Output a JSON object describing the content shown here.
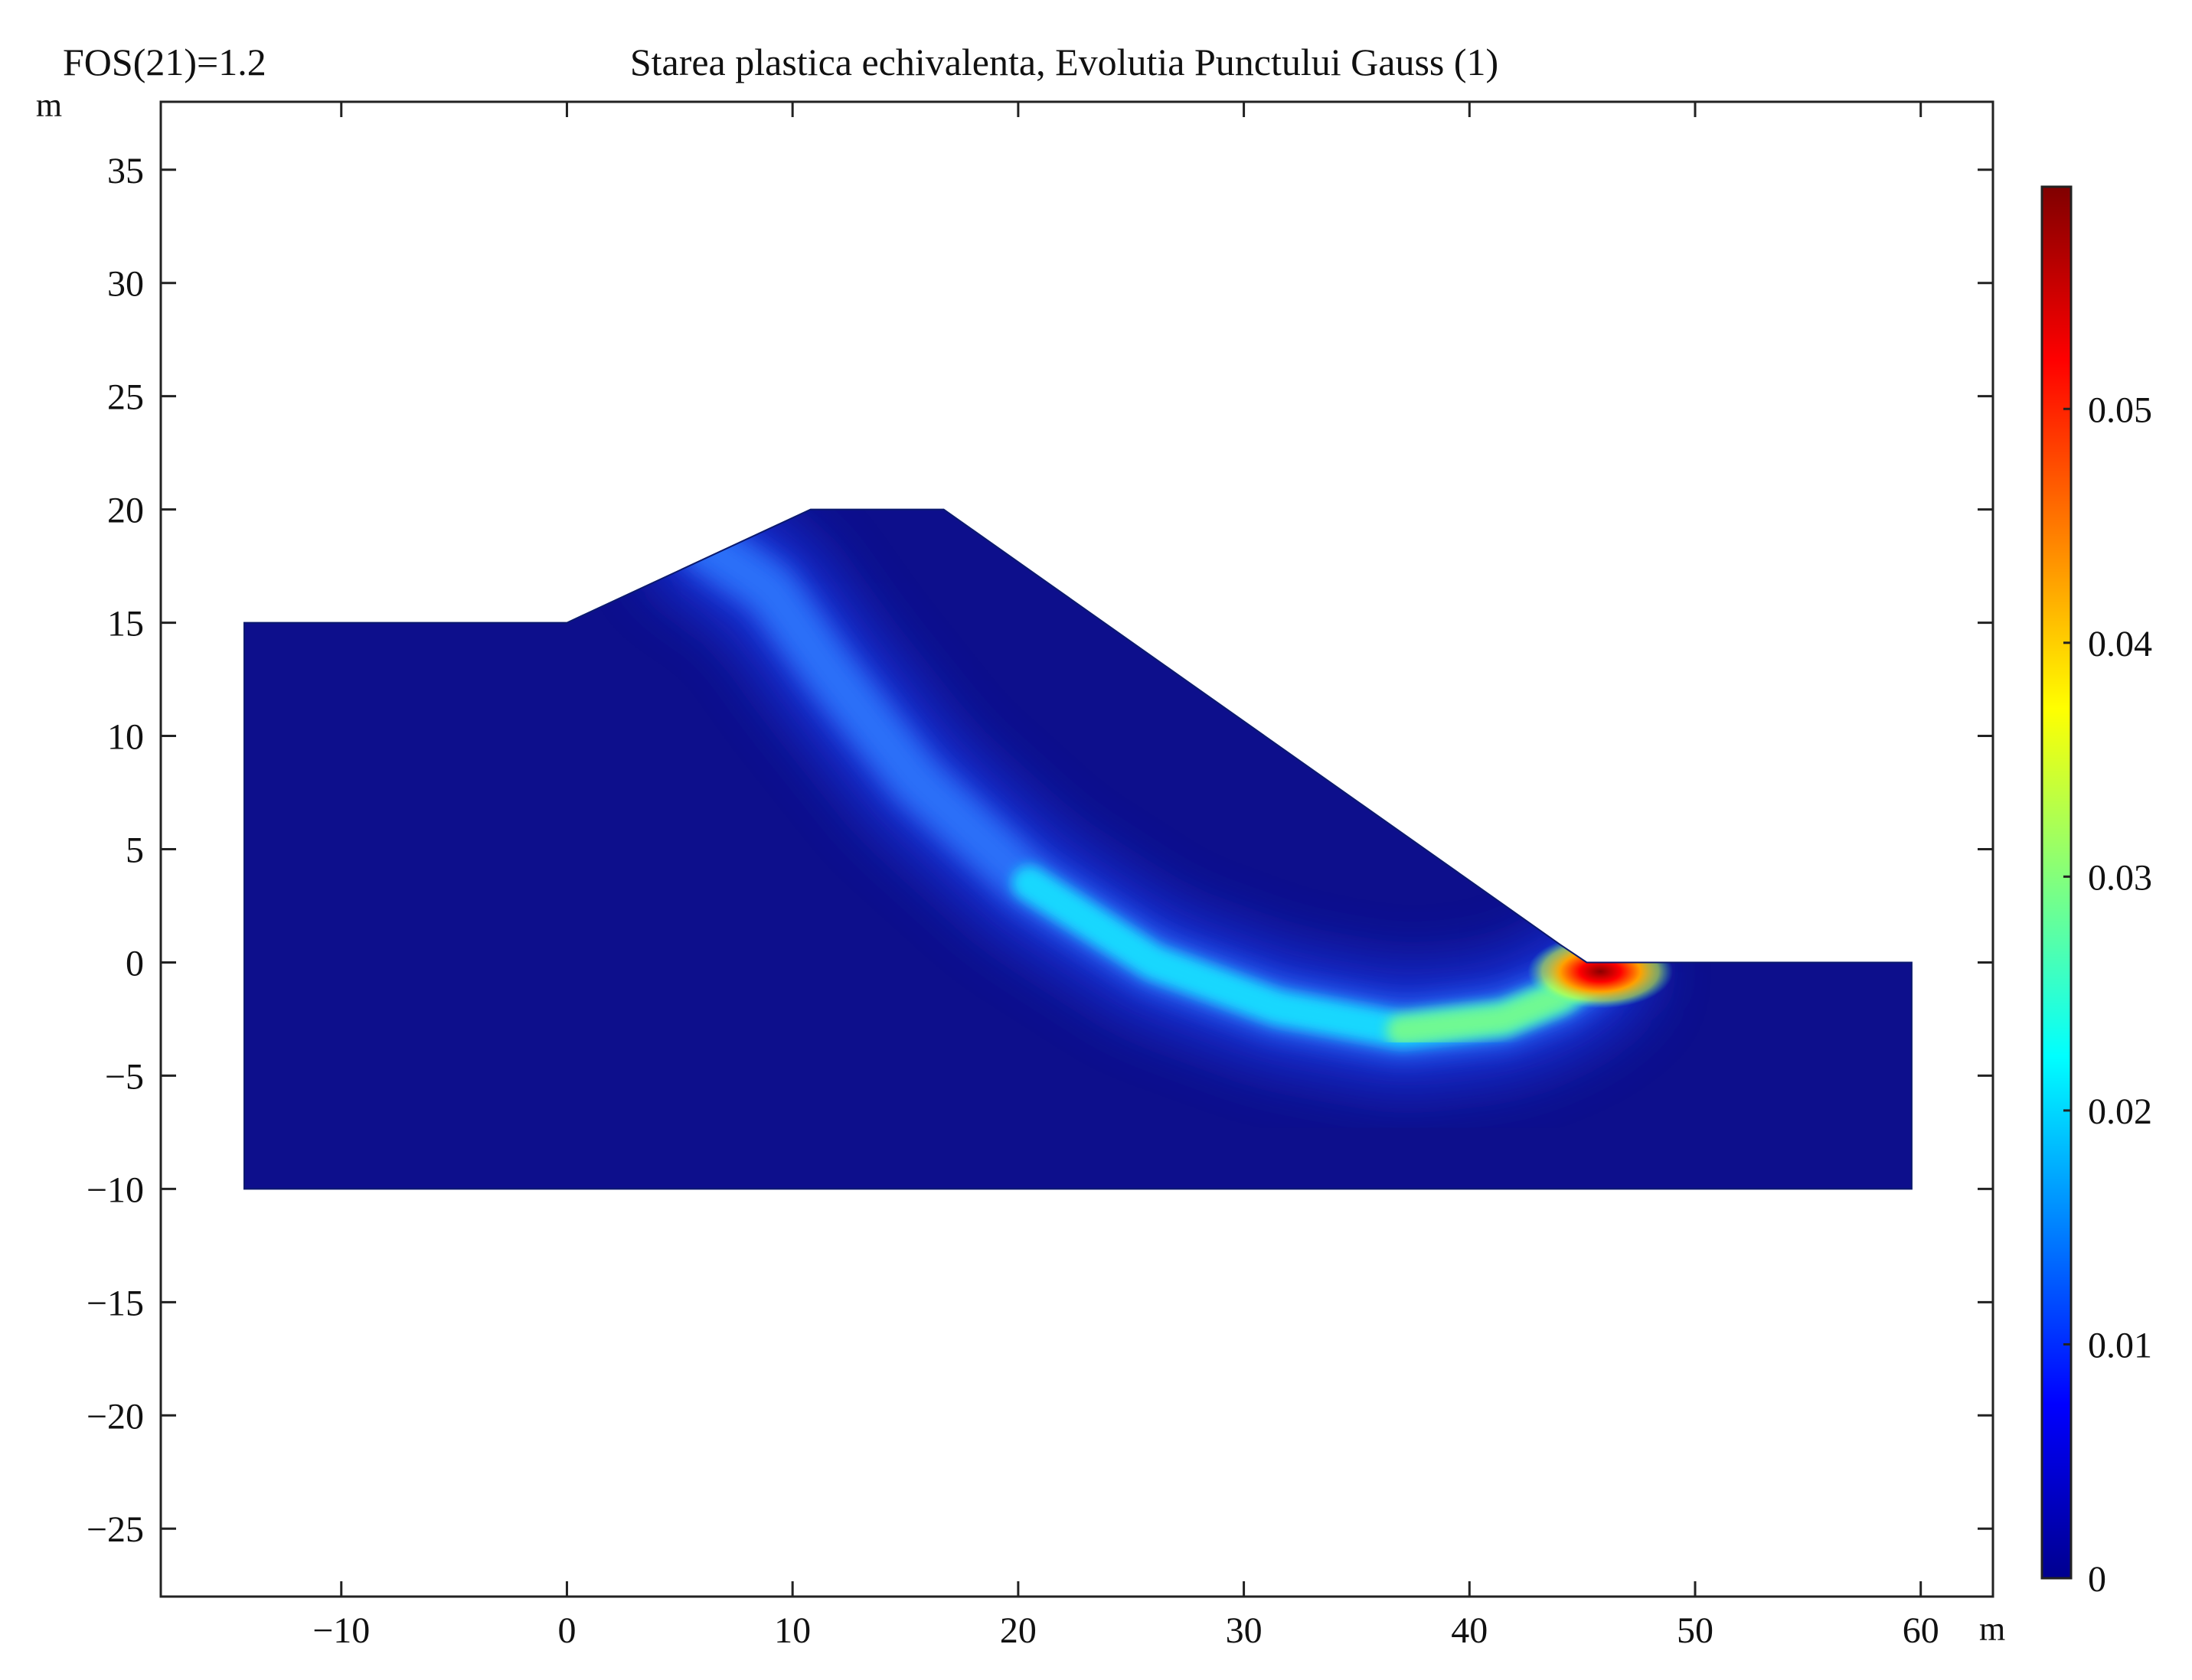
{
  "chart_data": {
    "type": "heatmap",
    "subtype": "2D finite-element contour plot of equivalent plastic strain in a slope",
    "title": "Starea plastica echivalenta, Evolutia Punctului Gauss (1)",
    "corner_label": "FOS(21)=1.2",
    "xlabel": "m",
    "ylabel": "m",
    "xlim": [
      -18,
      63.2
    ],
    "ylim": [
      -28,
      38
    ],
    "x_ticks": [
      -10,
      0,
      10,
      20,
      30,
      40,
      50,
      60
    ],
    "x_tick_labels": [
      "−10",
      "0",
      "10",
      "20",
      "30",
      "40",
      "50",
      "60"
    ],
    "y_ticks": [
      35,
      30,
      25,
      20,
      15,
      10,
      5,
      0,
      -5,
      -10,
      -15,
      -20,
      -25
    ],
    "y_tick_labels": [
      "35",
      "30",
      "25",
      "20",
      "15",
      "10",
      "5",
      "0",
      "−5",
      "−10",
      "−15",
      "−20",
      "−25"
    ],
    "grid": false,
    "domain_outline": [
      [
        -14.3,
        -10
      ],
      [
        -14.3,
        15
      ],
      [
        0,
        15
      ],
      [
        10.8,
        20
      ],
      [
        16.7,
        20
      ],
      [
        44,
        0.8
      ],
      [
        45.2,
        0
      ],
      [
        59.6,
        0
      ],
      [
        59.6,
        -10
      ]
    ],
    "shear_band": [
      [
        6.0,
        18.5
      ],
      [
        9.0,
        16.5
      ],
      [
        11.5,
        13.0
      ],
      [
        15.5,
        8.0
      ],
      [
        20.5,
        3.5
      ],
      [
        26.0,
        0.0
      ],
      [
        31.5,
        -2.0
      ],
      [
        37.0,
        -3.0
      ],
      [
        41.5,
        -2.5
      ],
      [
        44.0,
        -1.5
      ],
      [
        45.5,
        -0.4
      ]
    ],
    "peak_location": [
      45.8,
      -0.4
    ],
    "peak_value": 0.059,
    "colorbar": {
      "colormap": "jet",
      "range": [
        0,
        0.0595
      ],
      "ticks": [
        0,
        0.01,
        0.02,
        0.03,
        0.04,
        0.05
      ],
      "tick_labels": [
        "0",
        "0.01",
        "0.02",
        "0.03",
        "0.04",
        "0.05"
      ],
      "colors": [
        "#00008f",
        "#0000ff",
        "#00ffff",
        "#ffff00",
        "#ff0000",
        "#800000"
      ]
    }
  }
}
